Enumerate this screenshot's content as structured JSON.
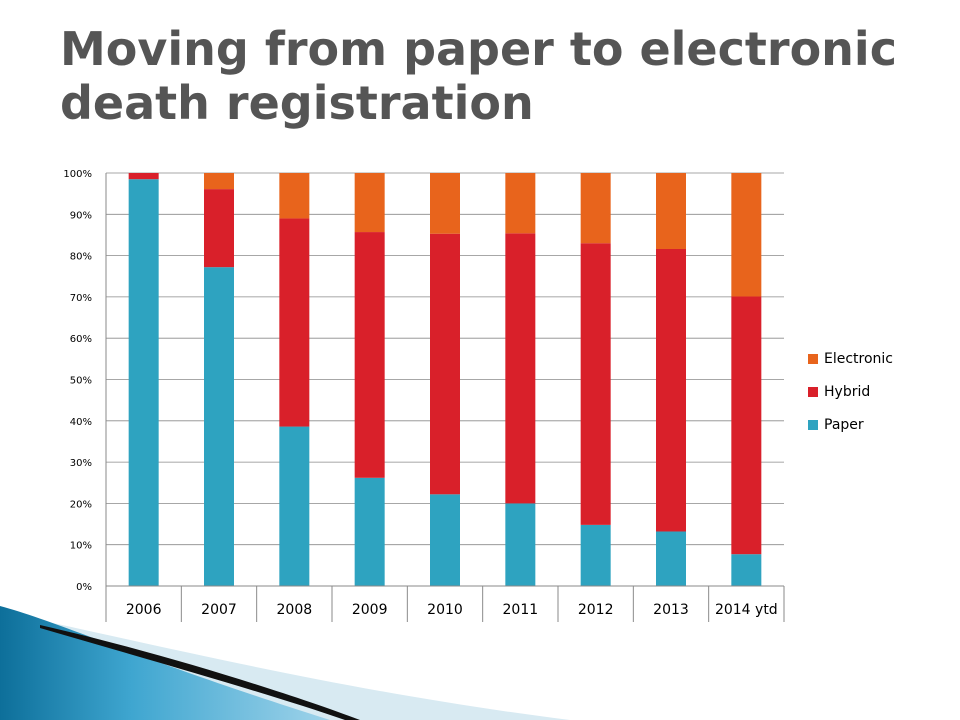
{
  "slide": {
    "title_line1": "Moving from paper to electronic",
    "title_line2": "death registration"
  },
  "chart_data": {
    "type": "bar",
    "stacked": true,
    "categories": [
      "2006",
      "2007",
      "2008",
      "2009",
      "2010",
      "2011",
      "2012",
      "2013",
      "2014 ytd"
    ],
    "series": [
      {
        "name": "Paper",
        "color": "#2ea3c0",
        "values": [
          98.5,
          77.2,
          38.6,
          26.2,
          22.2,
          20.0,
          14.8,
          13.2,
          7.7
        ]
      },
      {
        "name": "Hybrid",
        "color": "#d9202a",
        "values": [
          1.5,
          18.9,
          50.4,
          59.5,
          63.1,
          65.4,
          68.2,
          68.4,
          62.4
        ]
      },
      {
        "name": "Electronic",
        "color": "#e8641c",
        "values": [
          0.0,
          3.9,
          11.0,
          14.3,
          14.7,
          14.6,
          17.0,
          18.4,
          29.9
        ]
      }
    ],
    "yticks": [
      "0%",
      "10%",
      "20%",
      "30%",
      "40%",
      "50%",
      "60%",
      "70%",
      "80%",
      "90%",
      "100%"
    ],
    "ylim": [
      0,
      100
    ],
    "grid": true,
    "legend": {
      "placement": "right",
      "entries": [
        "Electronic",
        "Hybrid",
        "Paper"
      ]
    }
  }
}
